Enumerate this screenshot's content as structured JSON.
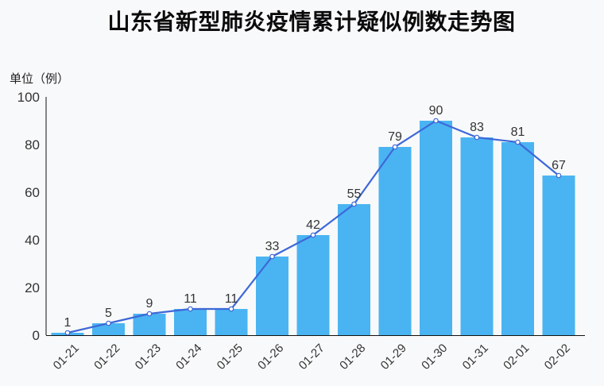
{
  "page": {
    "background": "#f8f9fa"
  },
  "chart_data": {
    "type": "bar",
    "subtype": "bar+line combo (same series drawn as bars and as a marked line)",
    "title": "山东省新型肺炎疫情累计疑似例数走势图",
    "unit_label": "单位（例）",
    "categories": [
      "01-21",
      "01-22",
      "01-23",
      "01-24",
      "01-25",
      "01-26",
      "01-27",
      "01-28",
      "01-29",
      "01-30",
      "01-31",
      "02-01",
      "02-02"
    ],
    "values": [
      1,
      5,
      9,
      11,
      11,
      33,
      42,
      55,
      79,
      90,
      83,
      81,
      67
    ],
    "series": [
      {
        "name": "累计疑似例数(柱)",
        "type": "bar"
      },
      {
        "name": "累计疑似例数(线)",
        "type": "line"
      }
    ],
    "xlabel": "",
    "ylabel": "单位（例）",
    "ylim": [
      0,
      100
    ],
    "yticks": [
      0,
      20,
      40,
      60,
      80,
      100
    ],
    "grid": false,
    "legend_position": "none",
    "x_tick_rotation": -45,
    "colors": {
      "bar": "#4ab4f2",
      "line": "#3d68d8",
      "marker_fill": "#ffffff",
      "axis": "#111111",
      "text": "#333333",
      "title": "#0b0b0b"
    }
  }
}
